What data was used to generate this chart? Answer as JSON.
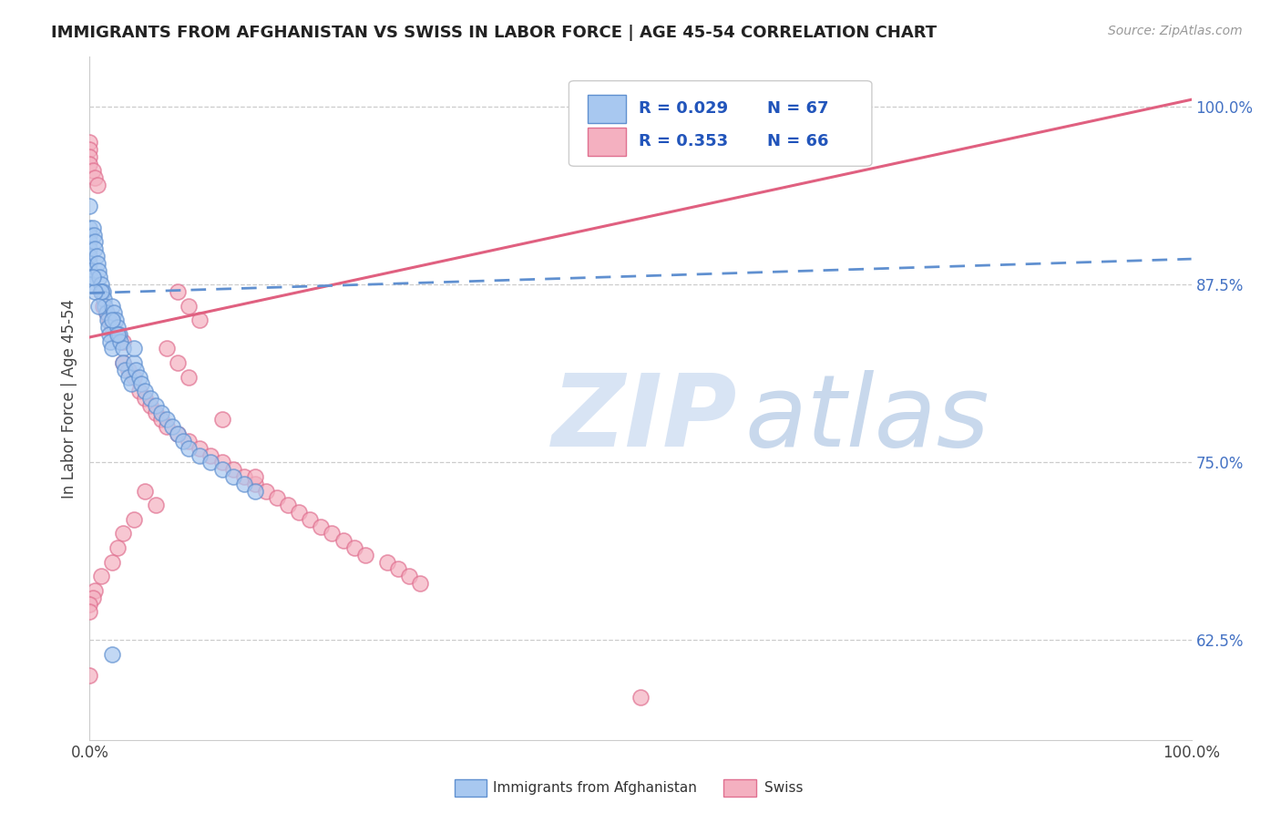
{
  "title": "IMMIGRANTS FROM AFGHANISTAN VS SWISS IN LABOR FORCE | AGE 45-54 CORRELATION CHART",
  "source": "Source: ZipAtlas.com",
  "ylabel": "In Labor Force | Age 45-54",
  "xlim": [
    0.0,
    1.0
  ],
  "ylim": [
    0.555,
    1.035
  ],
  "yticks": [
    0.625,
    0.75,
    0.875,
    1.0
  ],
  "ytick_labels": [
    "62.5%",
    "75.0%",
    "87.5%",
    "100.0%"
  ],
  "xtick_labels": [
    "0.0%",
    "100.0%"
  ],
  "xticks": [
    0.0,
    1.0
  ],
  "legend_r1": "R = 0.029",
  "legend_n1": "N = 67",
  "legend_r2": "R = 0.353",
  "legend_n2": "N = 66",
  "color_blue": "#A8C8F0",
  "color_pink": "#F4B0C0",
  "edge_blue": "#6090D0",
  "edge_pink": "#E07090",
  "line_blue_color": "#6090D0",
  "line_pink_color": "#E06080",
  "watermark_zip_color": "#D8E4F4",
  "watermark_atlas_color": "#C8D8EC",
  "blue_points_x": [
    0.0,
    0.0,
    0.0,
    0.0,
    0.0,
    0.0,
    0.0,
    0.0,
    0.0,
    0.0,
    0.003,
    0.004,
    0.005,
    0.005,
    0.006,
    0.007,
    0.008,
    0.009,
    0.01,
    0.01,
    0.012,
    0.013,
    0.014,
    0.015,
    0.016,
    0.017,
    0.018,
    0.019,
    0.02,
    0.02,
    0.022,
    0.024,
    0.025,
    0.027,
    0.028,
    0.03,
    0.03,
    0.032,
    0.035,
    0.038,
    0.04,
    0.042,
    0.045,
    0.047,
    0.05,
    0.055,
    0.06,
    0.065,
    0.07,
    0.075,
    0.08,
    0.085,
    0.09,
    0.1,
    0.11,
    0.12,
    0.13,
    0.14,
    0.15,
    0.01,
    0.005,
    0.003,
    0.008,
    0.02,
    0.025,
    0.04,
    0.02
  ],
  "blue_points_y": [
    0.93,
    0.915,
    0.91,
    0.905,
    0.9,
    0.895,
    0.89,
    0.885,
    0.88,
    0.875,
    0.915,
    0.91,
    0.905,
    0.9,
    0.895,
    0.89,
    0.885,
    0.88,
    0.875,
    0.87,
    0.87,
    0.865,
    0.86,
    0.855,
    0.85,
    0.845,
    0.84,
    0.835,
    0.83,
    0.86,
    0.855,
    0.85,
    0.845,
    0.84,
    0.835,
    0.83,
    0.82,
    0.815,
    0.81,
    0.805,
    0.82,
    0.815,
    0.81,
    0.805,
    0.8,
    0.795,
    0.79,
    0.785,
    0.78,
    0.775,
    0.77,
    0.765,
    0.76,
    0.755,
    0.75,
    0.745,
    0.74,
    0.735,
    0.73,
    0.87,
    0.87,
    0.88,
    0.86,
    0.85,
    0.84,
    0.83,
    0.615
  ],
  "pink_points_x": [
    0.0,
    0.0,
    0.0,
    0.0,
    0.003,
    0.005,
    0.007,
    0.01,
    0.012,
    0.015,
    0.018,
    0.02,
    0.025,
    0.03,
    0.03,
    0.035,
    0.04,
    0.045,
    0.05,
    0.055,
    0.06,
    0.065,
    0.07,
    0.08,
    0.09,
    0.1,
    0.11,
    0.12,
    0.13,
    0.14,
    0.15,
    0.16,
    0.17,
    0.18,
    0.19,
    0.2,
    0.21,
    0.22,
    0.23,
    0.24,
    0.25,
    0.27,
    0.28,
    0.29,
    0.3,
    0.07,
    0.08,
    0.09,
    0.05,
    0.06,
    0.04,
    0.03,
    0.025,
    0.02,
    0.01,
    0.005,
    0.003,
    0.0,
    0.0,
    0.0,
    0.08,
    0.09,
    0.1,
    0.12,
    0.15,
    0.5
  ],
  "pink_points_y": [
    0.975,
    0.97,
    0.965,
    0.96,
    0.955,
    0.95,
    0.945,
    0.87,
    0.86,
    0.855,
    0.85,
    0.845,
    0.84,
    0.835,
    0.82,
    0.815,
    0.81,
    0.8,
    0.795,
    0.79,
    0.785,
    0.78,
    0.775,
    0.77,
    0.765,
    0.76,
    0.755,
    0.75,
    0.745,
    0.74,
    0.735,
    0.73,
    0.725,
    0.72,
    0.715,
    0.71,
    0.705,
    0.7,
    0.695,
    0.69,
    0.685,
    0.68,
    0.675,
    0.67,
    0.665,
    0.83,
    0.82,
    0.81,
    0.73,
    0.72,
    0.71,
    0.7,
    0.69,
    0.68,
    0.67,
    0.66,
    0.655,
    0.65,
    0.645,
    0.6,
    0.87,
    0.86,
    0.85,
    0.78,
    0.74,
    0.585
  ],
  "blue_line_x0": 0.0,
  "blue_line_x1": 1.0,
  "blue_line_y0": 0.869,
  "blue_line_y1": 0.893,
  "pink_line_x0": 0.0,
  "pink_line_x1": 1.0,
  "pink_line_y0": 0.838,
  "pink_line_y1": 1.005
}
